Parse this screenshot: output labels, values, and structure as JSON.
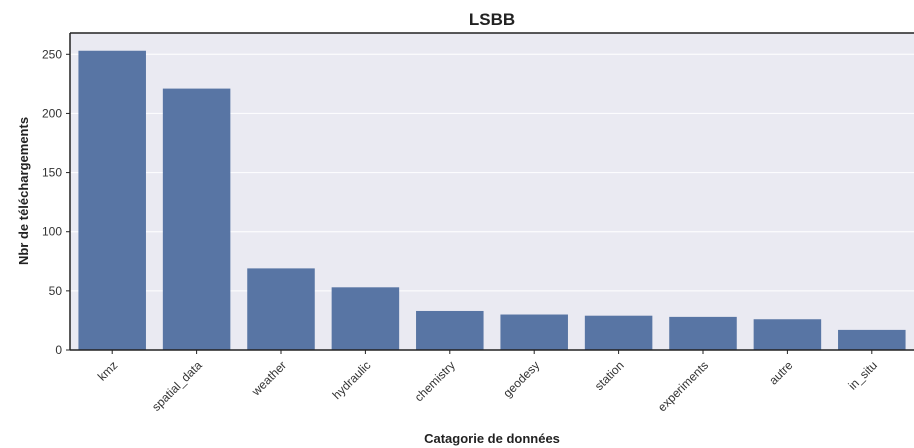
{
  "chart_data": {
    "type": "bar",
    "title": "LSBB",
    "xlabel": "Catagorie de données",
    "ylabel": "Nbr de téléchargements",
    "categories": [
      "kmz",
      "spatial_data",
      "weather",
      "hydraulic",
      "chemistry",
      "geodesy",
      "station",
      "experiments",
      "autre",
      "in_situ"
    ],
    "values": [
      253,
      221,
      69,
      53,
      33,
      30,
      29,
      28,
      26,
      17
    ],
    "ylim": [
      0,
      268
    ],
    "yticks": [
      0,
      50,
      100,
      150,
      200,
      250
    ],
    "grid": true,
    "bar_color": "#5875a4",
    "plot_background": "#eaeaf2"
  }
}
